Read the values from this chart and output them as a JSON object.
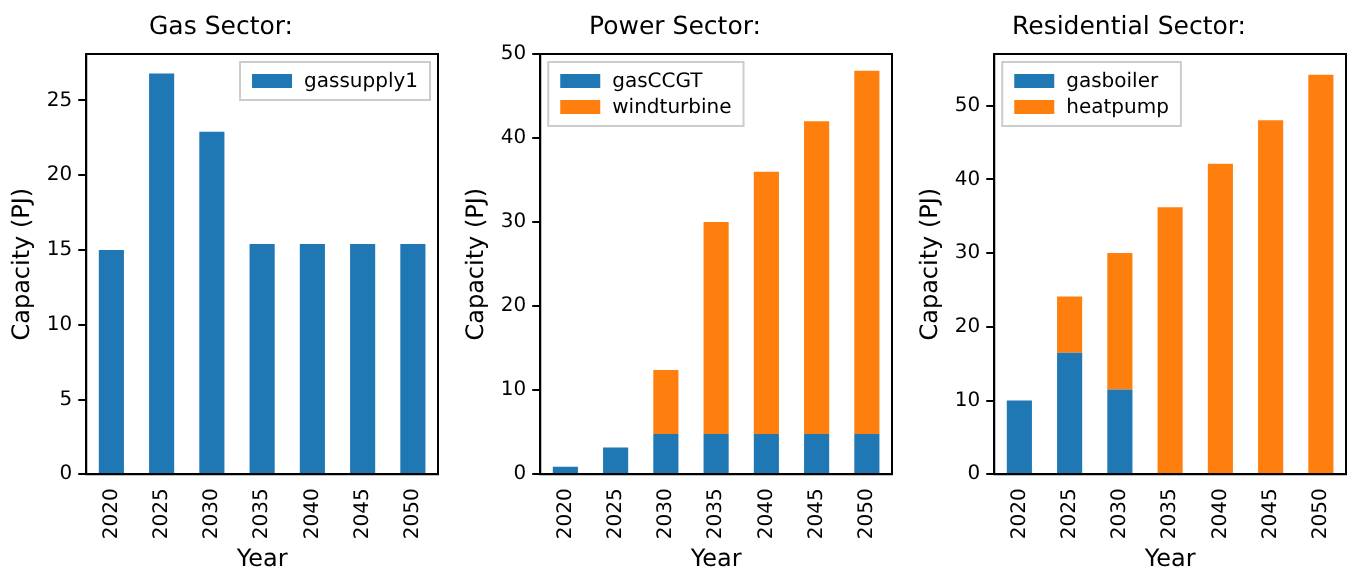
{
  "chart_data": [
    {
      "type": "bar",
      "title": "Gas Sector:",
      "xlabel": "Year",
      "ylabel": "Capacity (PJ)",
      "categories": [
        "2020",
        "2025",
        "2030",
        "2035",
        "2040",
        "2045",
        "2050"
      ],
      "series": [
        {
          "name": "gassupply1",
          "color": "#1f77b4",
          "values": [
            15,
            26.8,
            22.9,
            15.4,
            15.4,
            15.4,
            15.4
          ]
        }
      ],
      "ylim": [
        0,
        28.1
      ],
      "yticks": [
        0,
        5,
        10,
        15,
        20,
        25
      ],
      "legend": "top right"
    },
    {
      "type": "bar",
      "title": "Power Sector:",
      "xlabel": "Year",
      "ylabel": "Capacity (PJ)",
      "categories": [
        "2020",
        "2025",
        "2030",
        "2035",
        "2040",
        "2045",
        "2050"
      ],
      "stacked": true,
      "series": [
        {
          "name": "gasCCGT",
          "color": "#1f77b4",
          "values": [
            0.9,
            3.2,
            4.8,
            4.8,
            4.8,
            4.8,
            4.8
          ]
        },
        {
          "name": "windturbine",
          "color": "#ff7f0e",
          "values": [
            0,
            0,
            7.6,
            25.2,
            31.2,
            37.2,
            43.2
          ]
        }
      ],
      "ylim": [
        0,
        50
      ],
      "yticks": [
        0,
        10,
        20,
        30,
        40,
        50
      ],
      "legend": "top left"
    },
    {
      "type": "bar",
      "title": "Residential Sector:",
      "xlabel": "Year",
      "ylabel": "Capacity (PJ)",
      "categories": [
        "2020",
        "2025",
        "2030",
        "2035",
        "2040",
        "2045",
        "2050"
      ],
      "stacked": true,
      "series": [
        {
          "name": "gasboiler",
          "color": "#1f77b4",
          "values": [
            10,
            16.5,
            11.5,
            0,
            0,
            0,
            0
          ]
        },
        {
          "name": "heatpump",
          "color": "#ff7f0e",
          "values": [
            0,
            7.6,
            18.5,
            36.2,
            42.1,
            48,
            54.2
          ]
        }
      ],
      "ylim": [
        0,
        57
      ],
      "yticks": [
        0,
        10,
        20,
        30,
        40,
        50
      ],
      "legend": "top left"
    }
  ]
}
